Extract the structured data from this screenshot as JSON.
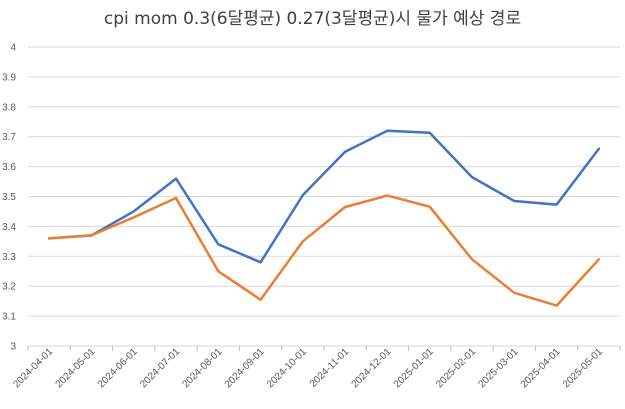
{
  "chart_data": {
    "type": "line",
    "title": "cpi mom 0.3(6달평균) 0.27(3달평균)시 물가 예상 경로",
    "xlabel": "",
    "ylabel": "",
    "categories": [
      "2024-04-01",
      "2024-05-01",
      "2024-06-01",
      "2024-07-01",
      "2024-08-01",
      "2024-09-01",
      "2024-10-01",
      "2024-11-01",
      "2024-12-01",
      "2025-01-01",
      "2025-02-01",
      "2025-03-01",
      "2025-04-01",
      "2025-05-01"
    ],
    "ylim": [
      3,
      4
    ],
    "yticks": [
      "3",
      "3.1",
      "3.2",
      "3.3",
      "3.4",
      "3.5",
      "3.6",
      "3.7",
      "3.8",
      "3.9",
      "4"
    ],
    "grid": "horizontal",
    "legend": "none",
    "series": [
      {
        "color": "#4472C4",
        "values": [
          3.36,
          3.37,
          3.45,
          3.56,
          3.34,
          3.28,
          3.505,
          3.65,
          3.72,
          3.713,
          3.565,
          3.485,
          3.473,
          3.66
        ]
      },
      {
        "color": "#ED7D31",
        "values": [
          3.36,
          3.37,
          3.43,
          3.495,
          3.25,
          3.155,
          3.35,
          3.465,
          3.503,
          3.466,
          3.29,
          3.178,
          3.135,
          3.29
        ]
      }
    ]
  }
}
